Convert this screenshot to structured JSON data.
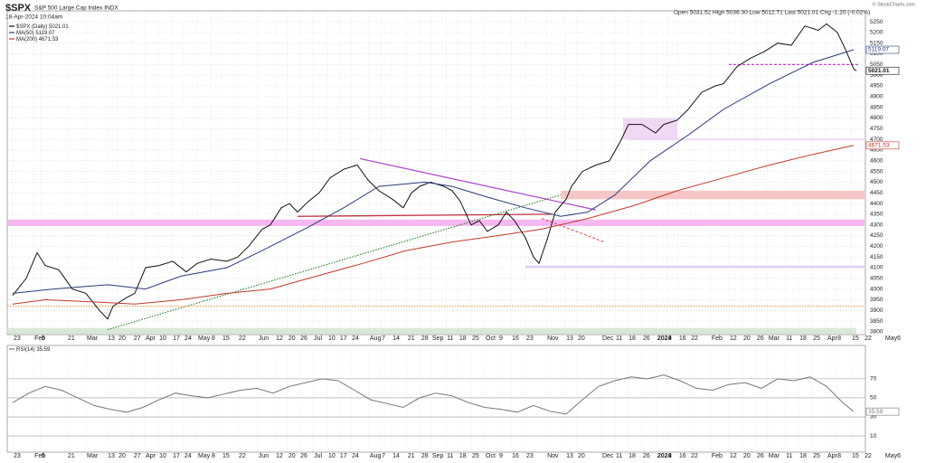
{
  "header": {
    "title": "$SPX",
    "subtitle": "S&P 500 Large Cap Index INDX",
    "date": "18-Apr-2024 10:04am",
    "quote": "Open 5031.52 High 5036.30 Low 5012.71 Last 5021.01 Chg -1.20 (-0.02%)",
    "credit": "© StockCharts.com"
  },
  "chart_data": [
    {
      "type": "line",
      "xlim": [
        -2,
        314
      ],
      "ylim": [
        3787,
        5301
      ],
      "yticks": [
        3800,
        3850,
        3900,
        3950,
        4000,
        4050,
        4100,
        4150,
        4200,
        4250,
        4300,
        4350,
        4400,
        4450,
        4500,
        4550,
        4600,
        4650,
        4700,
        4750,
        4800,
        4850,
        4900,
        4950,
        5000,
        5050,
        5100,
        5150,
        5200,
        5250
      ],
      "xticks": [
        {
          "value": 0,
          "label": "23"
        },
        {
          "value": 7.7,
          "label": "Feb"
        },
        {
          "value": 10.3,
          "label": "6"
        },
        {
          "value": 20,
          "label": "21"
        },
        {
          "value": 27,
          "label": "Mar"
        },
        {
          "value": 34.7,
          "label": "13"
        },
        {
          "value": 38.7,
          "label": "20"
        },
        {
          "value": 44.3,
          "label": "27"
        },
        {
          "value": 48.7,
          "label": "Apr"
        },
        {
          "value": 53.7,
          "label": "10"
        },
        {
          "value": 58.7,
          "label": "17"
        },
        {
          "value": 63,
          "label": "24"
        },
        {
          "value": 68,
          "label": "May"
        },
        {
          "value": 73,
          "label": "8"
        },
        {
          "value": 77,
          "label": "15"
        },
        {
          "value": 83,
          "label": "22"
        },
        {
          "value": 90.3,
          "label": "Jun"
        },
        {
          "value": 96.7,
          "label": "12"
        },
        {
          "value": 101.3,
          "label": "20"
        },
        {
          "value": 105.7,
          "label": "26"
        },
        {
          "value": 110.7,
          "label": "Jul"
        },
        {
          "value": 116,
          "label": "10"
        },
        {
          "value": 120.3,
          "label": "17"
        },
        {
          "value": 124.7,
          "label": "24"
        },
        {
          "value": 131.3,
          "label": "Aug"
        },
        {
          "value": 135.7,
          "label": "7"
        },
        {
          "value": 139.7,
          "label": "14"
        },
        {
          "value": 145.3,
          "label": "21"
        },
        {
          "value": 150.3,
          "label": "28"
        },
        {
          "value": 154.3,
          "label": "Sep"
        },
        {
          "value": 159.7,
          "label": "11"
        },
        {
          "value": 164.3,
          "label": "18"
        },
        {
          "value": 169,
          "label": "25"
        },
        {
          "value": 174,
          "label": "Oct"
        },
        {
          "value": 179,
          "label": "9"
        },
        {
          "value": 183.7,
          "label": "16"
        },
        {
          "value": 189,
          "label": "23"
        },
        {
          "value": 196.7,
          "label": "Nov"
        },
        {
          "value": 203.7,
          "label": "13"
        },
        {
          "value": 208,
          "label": "20"
        },
        {
          "value": 217,
          "label": "Dec"
        },
        {
          "value": 222,
          "label": "11"
        },
        {
          "value": 226.7,
          "label": "18"
        },
        {
          "value": 232,
          "label": "26"
        },
        {
          "value": 237.3,
          "label": "2024"
        },
        {
          "value": 241.3,
          "label": "8"
        },
        {
          "value": 245.3,
          "label": "16"
        },
        {
          "value": 249.7,
          "label": "22"
        },
        {
          "value": 257.3,
          "label": "Feb"
        },
        {
          "value": 264,
          "label": "12"
        },
        {
          "value": 269,
          "label": "20"
        },
        {
          "value": 274,
          "label": "26"
        },
        {
          "value": 278.3,
          "label": "Mar"
        },
        {
          "value": 284.7,
          "label": "11"
        },
        {
          "value": 289.7,
          "label": "18"
        },
        {
          "value": 294.7,
          "label": "25"
        },
        {
          "value": 300,
          "label": "Apr"
        },
        {
          "value": 303.7,
          "label": "8"
        },
        {
          "value": 309,
          "label": "15"
        },
        {
          "value": 313.7,
          "label": "22"
        },
        {
          "value": 321.3,
          "label": "May6"
        }
      ],
      "grid": true,
      "series": [
        {
          "name": "$SPX (Daily)",
          "color": "#111111",
          "x": [
            0,
            5,
            9,
            12,
            17,
            22,
            27,
            32,
            35,
            37,
            42,
            45,
            49,
            54,
            59,
            64,
            68,
            73,
            79,
            83,
            87,
            92,
            95,
            99,
            102,
            105,
            109,
            113,
            117,
            122,
            127,
            131,
            135,
            140,
            144,
            147,
            150,
            154,
            159,
            162,
            165,
            169,
            172,
            175,
            179,
            182,
            185,
            189,
            192,
            194,
            197,
            200,
            204,
            206,
            210,
            215,
            220,
            224,
            227,
            232,
            237,
            240,
            245,
            249,
            254,
            259,
            262,
            267,
            272,
            277,
            282,
            287,
            292,
            297,
            300,
            304,
            307,
            310,
            311
          ],
          "values": [
            3970,
            4050,
            4170,
            4110,
            4090,
            4000,
            3980,
            3900,
            3860,
            3920,
            3960,
            3980,
            4100,
            4110,
            4130,
            4080,
            4120,
            4140,
            4130,
            4150,
            4200,
            4280,
            4300,
            4380,
            4400,
            4360,
            4410,
            4450,
            4520,
            4560,
            4580,
            4510,
            4460,
            4420,
            4380,
            4450,
            4480,
            4500,
            4480,
            4460,
            4410,
            4300,
            4320,
            4270,
            4300,
            4360,
            4320,
            4240,
            4150,
            4120,
            4230,
            4360,
            4420,
            4480,
            4550,
            4580,
            4600,
            4690,
            4770,
            4770,
            4730,
            4770,
            4790,
            4840,
            4920,
            4950,
            4960,
            5040,
            5080,
            5110,
            5150,
            5140,
            5230,
            5210,
            5240,
            5200,
            5120,
            5030,
            5021.01
          ]
        },
        {
          "name": "MA(50)",
          "color": "#2a3a7a",
          "x": [
            0,
            15,
            35,
            49,
            62,
            79,
            92,
            109,
            122,
            135,
            152,
            162,
            175,
            189,
            202,
            212,
            222,
            235,
            249,
            262,
            279,
            295,
            310
          ],
          "values": [
            3980,
            4000,
            4020,
            4000,
            4060,
            4100,
            4180,
            4290,
            4380,
            4480,
            4500,
            4480,
            4430,
            4380,
            4340,
            4360,
            4440,
            4600,
            4720,
            4840,
            4960,
            5060,
            5119.07
          ]
        },
        {
          "name": "MA(200)",
          "color": "#c0392b",
          "x": [
            0,
            12,
            29,
            45,
            62,
            79,
            95,
            112,
            129,
            145,
            162,
            179,
            195,
            212,
            229,
            245,
            262,
            279,
            295,
            310
          ],
          "values": [
            3930,
            3950,
            3940,
            3930,
            3950,
            3980,
            4000,
            4060,
            4120,
            4180,
            4220,
            4250,
            4280,
            4330,
            4390,
            4460,
            4520,
            4580,
            4630,
            4671.53
          ]
        }
      ],
      "annotations": [
        {
          "kind": "zone",
          "x": [
            -2,
            314
          ],
          "y": [
            4295,
            4325
          ],
          "color": "#f3a6f0"
        },
        {
          "kind": "zone",
          "x": [
            202,
            314
          ],
          "y": [
            4420,
            4460
          ],
          "color": "#f5b9b9"
        },
        {
          "kind": "zone",
          "x": [
            227,
            314
          ],
          "y": [
            4695,
            4705
          ],
          "color": "#ead6f3"
        },
        {
          "kind": "zone",
          "x": [
            225,
            245
          ],
          "y": [
            4700,
            4800
          ],
          "color": "#ecd0f3"
        },
        {
          "kind": "zone",
          "x": [
            189,
            314
          ],
          "y": [
            4098,
            4110
          ],
          "color": "#dcc6f3"
        },
        {
          "kind": "zone",
          "x": [
            -2,
            311
          ],
          "y": [
            3790,
            3818
          ],
          "color": "#cfe3cf"
        },
        {
          "kind": "line",
          "x": [
            105,
            199
          ],
          "y": [
            4340,
            4350
          ],
          "color": "#c03040"
        },
        {
          "kind": "line",
          "x": [
            128,
            215
          ],
          "y": [
            4610,
            4370
          ],
          "color": "#b050d0"
        },
        {
          "kind": "dash",
          "x": [
            195,
            218
          ],
          "y": [
            4330,
            4220
          ],
          "color": "#e05050"
        },
        {
          "kind": "dot",
          "x": [
            35,
            202
          ],
          "y": [
            3810,
            4440
          ],
          "color": "#2a7a2a"
        },
        {
          "kind": "dash",
          "x": [
            264,
            312
          ],
          "y": [
            5050,
            5050
          ],
          "color": "#d020d0"
        },
        {
          "kind": "dot",
          "x": [
            -2,
            314
          ],
          "y": [
            3920,
            3920
          ],
          "color": "#f0a040"
        }
      ]
    },
    {
      "type": "line",
      "ylim": [
        -7,
        105
      ],
      "yticks": [
        10,
        30,
        50,
        70
      ],
      "grid": true,
      "series": [
        {
          "name": "RSI(14)",
          "color": "#777777",
          "x": [
            0,
            6,
            12,
            18,
            24,
            30,
            36,
            42,
            48,
            54,
            60,
            66,
            72,
            78,
            84,
            90,
            96,
            102,
            108,
            114,
            120,
            126,
            132,
            138,
            144,
            150,
            156,
            162,
            168,
            174,
            180,
            186,
            192,
            198,
            204,
            210,
            216,
            222,
            228,
            234,
            240,
            246,
            252,
            258,
            264,
            270,
            276,
            282,
            288,
            294,
            300,
            306,
            310
          ],
          "values": [
            45,
            55,
            62,
            58,
            50,
            42,
            38,
            35,
            40,
            48,
            55,
            52,
            50,
            54,
            58,
            60,
            55,
            62,
            66,
            70,
            68,
            58,
            48,
            44,
            40,
            50,
            55,
            52,
            45,
            40,
            38,
            35,
            42,
            36,
            33,
            48,
            62,
            68,
            72,
            70,
            74,
            68,
            60,
            58,
            64,
            66,
            60,
            70,
            68,
            72,
            62,
            45,
            35.59
          ]
        }
      ]
    }
  ]
}
